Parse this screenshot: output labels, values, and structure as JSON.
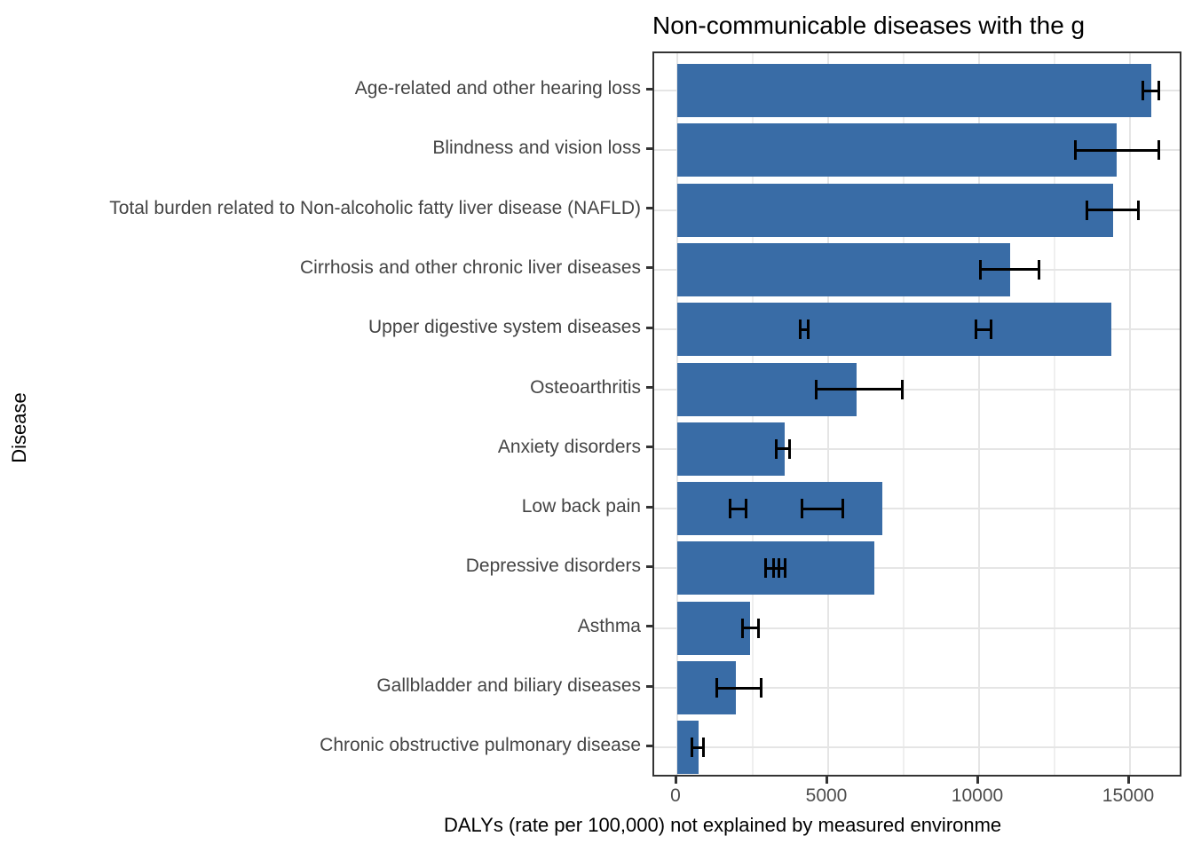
{
  "colors": {
    "bar": "#396CA6",
    "error_bar": "#000000",
    "grid_major": "#E5E5E5",
    "grid_minor": "#EFEFEF",
    "panel_border": "#333333",
    "axis_tick_text": "#4D4D4D",
    "category_text": "#444444",
    "title_text": "#000000",
    "background": "#FFFFFF"
  },
  "chart_data": {
    "type": "bar",
    "orientation": "horizontal",
    "title": "Non-communicable diseases with the g",
    "xlabel": "DALYs (rate per 100,000) not explained by measured environme",
    "ylabel": "Disease",
    "xlim": [
      0,
      16800
    ],
    "x_ticks": [
      0,
      5000,
      10000,
      15000
    ],
    "x_tick_labels": [
      "0",
      "5000",
      "10000",
      "15000"
    ],
    "x_minor_gridlines": [
      2500,
      7500,
      12500
    ],
    "grid": true,
    "legend": false,
    "rows": [
      {
        "label": "Age-related and other hearing loss",
        "value": 15700,
        "error_bars": [
          [
            15430,
            15970
          ]
        ]
      },
      {
        "label": "Blindness and vision loss",
        "value": 14550,
        "error_bars": [
          [
            13180,
            15970
          ]
        ]
      },
      {
        "label": "Total burden related to Non-alcoholic fatty liver disease (NAFLD)",
        "value": 14450,
        "error_bars": [
          [
            13580,
            15290
          ]
        ]
      },
      {
        "label": "Cirrhosis and other chronic liver diseases",
        "value": 11030,
        "error_bars": [
          [
            10040,
            11980
          ]
        ]
      },
      {
        "label": "Upper digestive system diseases",
        "value": 14380,
        "error_bars": [
          [
            4060,
            4350
          ],
          [
            9890,
            10400
          ]
        ]
      },
      {
        "label": "Osteoarthritis",
        "value": 5950,
        "error_bars": [
          [
            4600,
            7460
          ]
        ]
      },
      {
        "label": "Anxiety disorders",
        "value": 3550,
        "error_bars": [
          [
            3280,
            3720
          ]
        ]
      },
      {
        "label": "Low back pain",
        "value": 6780,
        "error_bars": [
          [
            1750,
            2290
          ],
          [
            4120,
            5490
          ]
        ]
      },
      {
        "label": "Depressive disorders",
        "value": 6540,
        "error_bars": [
          [
            2920,
            3380
          ],
          [
            3200,
            3580
          ]
        ]
      },
      {
        "label": "Asthma",
        "value": 2420,
        "error_bars": [
          [
            2150,
            2690
          ]
        ]
      },
      {
        "label": "Gallbladder and biliary diseases",
        "value": 1950,
        "error_bars": [
          [
            1320,
            2780
          ]
        ]
      },
      {
        "label": "Chronic obstructive pulmonary disease",
        "value": 700,
        "error_bars": [
          [
            490,
            860
          ]
        ]
      }
    ]
  }
}
